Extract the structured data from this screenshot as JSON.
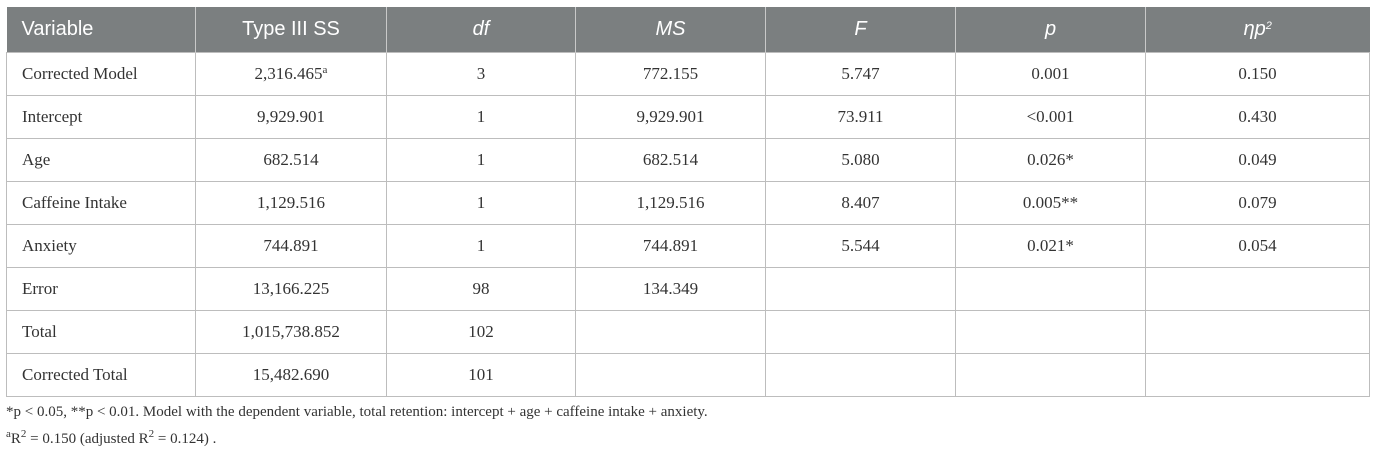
{
  "table": {
    "headers": [
      "Variable",
      "Type III SS",
      "df",
      "MS",
      "F",
      "p",
      "ηp",
      "2"
    ],
    "rows": [
      {
        "variable": "Corrected Model",
        "ss": "2,316.465",
        "ss_sup": "a",
        "df": "3",
        "ms": "772.155",
        "f": "5.747",
        "p": "0.001",
        "eta": "0.150"
      },
      {
        "variable": "Intercept",
        "ss": "9,929.901",
        "ss_sup": "",
        "df": "1",
        "ms": "9,929.901",
        "f": "73.911",
        "p": "<0.001",
        "eta": "0.430"
      },
      {
        "variable": "Age",
        "ss": "682.514",
        "ss_sup": "",
        "df": "1",
        "ms": "682.514",
        "f": "5.080",
        "p": "0.026*",
        "eta": "0.049"
      },
      {
        "variable": "Caffeine Intake",
        "ss": "1,129.516",
        "ss_sup": "",
        "df": "1",
        "ms": "1,129.516",
        "f": "8.407",
        "p": "0.005**",
        "eta": "0.079"
      },
      {
        "variable": "Anxiety",
        "ss": "744.891",
        "ss_sup": "",
        "df": "1",
        "ms": "744.891",
        "f": "5.544",
        "p": "0.021*",
        "eta": "0.054"
      },
      {
        "variable": "Error",
        "ss": "13,166.225",
        "ss_sup": "",
        "df": "98",
        "ms": "134.349",
        "f": "",
        "p": "",
        "eta": ""
      },
      {
        "variable": "Total",
        "ss": "1,015,738.852",
        "ss_sup": "",
        "df": "102",
        "ms": "",
        "f": "",
        "p": "",
        "eta": ""
      },
      {
        "variable": "Corrected Total",
        "ss": "15,482.690",
        "ss_sup": "",
        "df": "101",
        "ms": "",
        "f": "",
        "p": "",
        "eta": ""
      }
    ]
  },
  "notes": {
    "line1": "*p < 0.05, **p < 0.01. Model with the dependent variable, total retention: intercept + age + caffeine intake + anxiety.",
    "line2_sup_a": "a",
    "line2_a": "R",
    "line2_sup_b": "2",
    "line2_b": " = 0.150 (adjusted R",
    "line2_sup_c": "2",
    "line2_c": " = 0.124) ."
  }
}
